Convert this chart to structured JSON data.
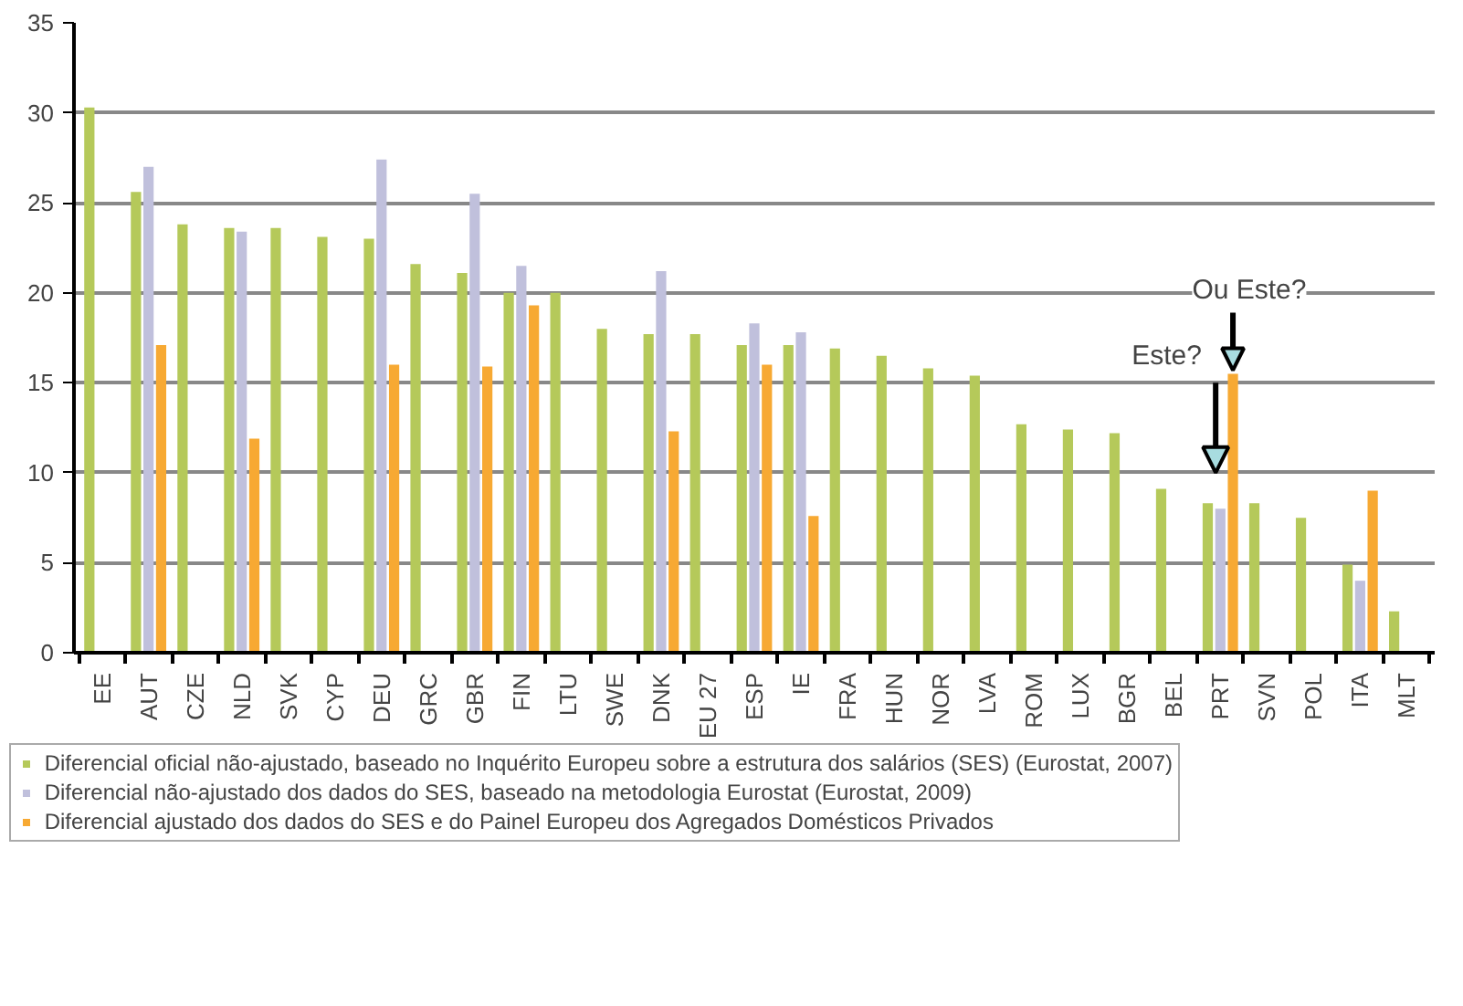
{
  "chart_data": {
    "type": "bar",
    "categories": [
      "EE",
      "AUT",
      "CZE",
      "NLD",
      "SVK",
      "CYP",
      "DEU",
      "GRC",
      "GBR",
      "FIN",
      "LTU",
      "SWE",
      "DNK",
      "EU 27",
      "ESP",
      "IE",
      "FRA",
      "HUN",
      "NOR",
      "LVA",
      "ROM",
      "LUX",
      "BGR",
      "BEL",
      "PRT",
      "SVN",
      "POL",
      "ITA",
      "MLT"
    ],
    "series": [
      {
        "name": "Diferencial oficial não-ajustado, baseado no Inquérito Europeu sobre a estrutura dos salários (SES) (Eurostat, 2007)",
        "color": "#b5c95a",
        "values": [
          30.3,
          25.6,
          23.8,
          23.6,
          23.6,
          23.1,
          23.0,
          21.6,
          21.1,
          20.0,
          20.0,
          18.0,
          17.7,
          17.7,
          17.1,
          17.1,
          16.9,
          16.5,
          15.8,
          15.4,
          12.7,
          12.4,
          12.2,
          9.1,
          8.3,
          8.3,
          7.5,
          4.9,
          2.3
        ]
      },
      {
        "name": "Diferencial não-ajustado dos dados do SES, baseado na metodologia Eurostat (Eurostat, 2009)",
        "color": "#c0c0dc",
        "values": [
          null,
          27.0,
          null,
          23.4,
          null,
          null,
          27.4,
          null,
          25.5,
          21.5,
          null,
          null,
          21.2,
          null,
          18.3,
          17.8,
          null,
          null,
          null,
          null,
          null,
          null,
          null,
          null,
          8.0,
          null,
          null,
          4.0,
          null
        ]
      },
      {
        "name": "Diferencial ajustado dos dados do SES e do Painel Europeu dos Agregados Domésticos Privados",
        "color": "#f7a933",
        "values": [
          null,
          17.1,
          null,
          11.9,
          null,
          null,
          16.0,
          null,
          15.9,
          19.3,
          null,
          null,
          12.3,
          null,
          16.0,
          7.6,
          null,
          null,
          null,
          null,
          null,
          null,
          null,
          null,
          15.5,
          null,
          null,
          9.0,
          null
        ]
      }
    ],
    "ylim": [
      0,
      35
    ],
    "yticks": [
      0,
      5,
      10,
      15,
      20,
      25,
      30,
      35
    ],
    "grid": "y",
    "legend": "bottom",
    "annotations": [
      {
        "text": "Este?",
        "x": "PRT",
        "y": 10
      },
      {
        "text": "Ou Este?",
        "x": "PRT",
        "y": 15.5
      }
    ]
  }
}
